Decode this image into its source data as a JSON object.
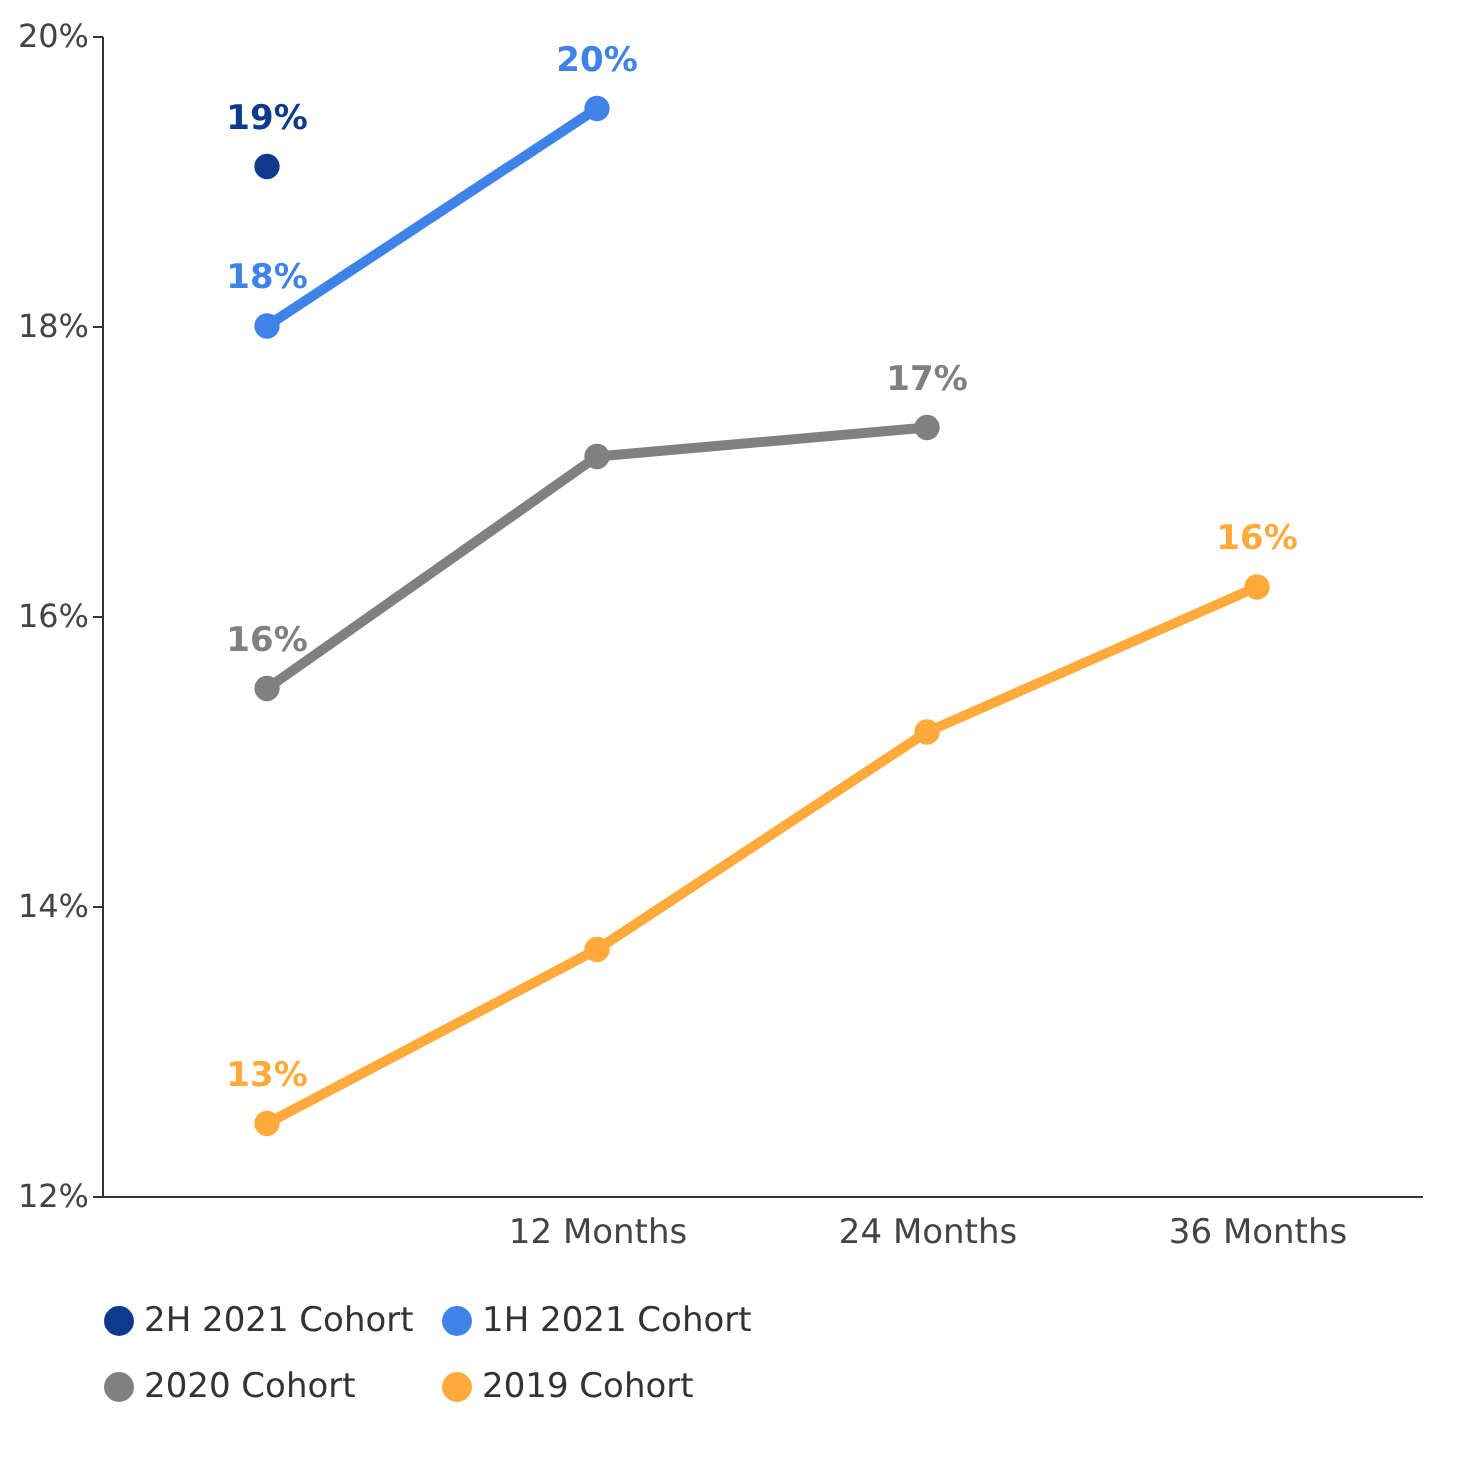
{
  "chart_data": {
    "type": "line",
    "categories": [
      null,
      "12 Months",
      "24 Months",
      "36 Months"
    ],
    "series": [
      {
        "name": "2H 2021 Cohort",
        "color": "#0d3a8c",
        "values": [
          19.1,
          null,
          null,
          null
        ],
        "value_labels": [
          "19%",
          null,
          null,
          null
        ]
      },
      {
        "name": "1H 2021 Cohort",
        "color": "#3f83e8",
        "values": [
          18.0,
          19.5,
          null,
          null
        ],
        "value_labels": [
          "18%",
          "20%",
          null,
          null
        ]
      },
      {
        "name": "2020 Cohort",
        "color": "#808080",
        "values": [
          15.5,
          17.1,
          17.3,
          null
        ],
        "value_labels": [
          "16%",
          null,
          "17%",
          null
        ]
      },
      {
        "name": "2019 Cohort",
        "color": "#ffaa3b",
        "values": [
          12.5,
          13.7,
          15.2,
          16.2
        ],
        "value_labels": [
          "13%",
          null,
          null,
          "16%"
        ]
      }
    ],
    "ylim": [
      12,
      20
    ],
    "yticks": [
      {
        "value": 12,
        "label": "12%"
      },
      {
        "value": 14,
        "label": "14%"
      },
      {
        "value": 16,
        "label": "16%"
      },
      {
        "value": 18,
        "label": "18%"
      },
      {
        "value": 20,
        "label": "20%"
      }
    ],
    "grid": false,
    "legend": "bottom",
    "marker": "circle",
    "line_style": "solid"
  }
}
